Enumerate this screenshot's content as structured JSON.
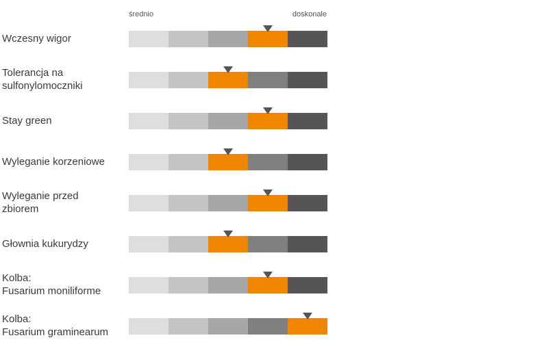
{
  "scale": {
    "min_label": "średnio",
    "max_label": "doskonale",
    "levels": 5
  },
  "colors": {
    "segments": [
      "#dedede",
      "#c4c4c4",
      "#a6a6a6",
      "#808080",
      "#555555"
    ],
    "highlight": "#f08600",
    "marker": "#555555"
  },
  "chart_data": {
    "type": "rating-scale",
    "scale_min_label": "średnio",
    "scale_max_label": "doskonale",
    "levels": 5,
    "traits": [
      {
        "label": "Wczesny wigor",
        "rating": 4
      },
      {
        "label": "Tolerancja na\nsulfonylomoczniki",
        "rating": 3
      },
      {
        "label": "Stay green",
        "rating": 4
      },
      {
        "label": "Wyleganie korzeniowe",
        "rating": 3
      },
      {
        "label": "Wyleganie przed\nzbiorem",
        "rating": 4
      },
      {
        "label": "Głownia kukurydzy",
        "rating": 3
      },
      {
        "label": "Kolba:\nFusarium moniliforme",
        "rating": 4
      },
      {
        "label": "Kolba:\nFusarium graminearum",
        "rating": 5
      }
    ]
  }
}
